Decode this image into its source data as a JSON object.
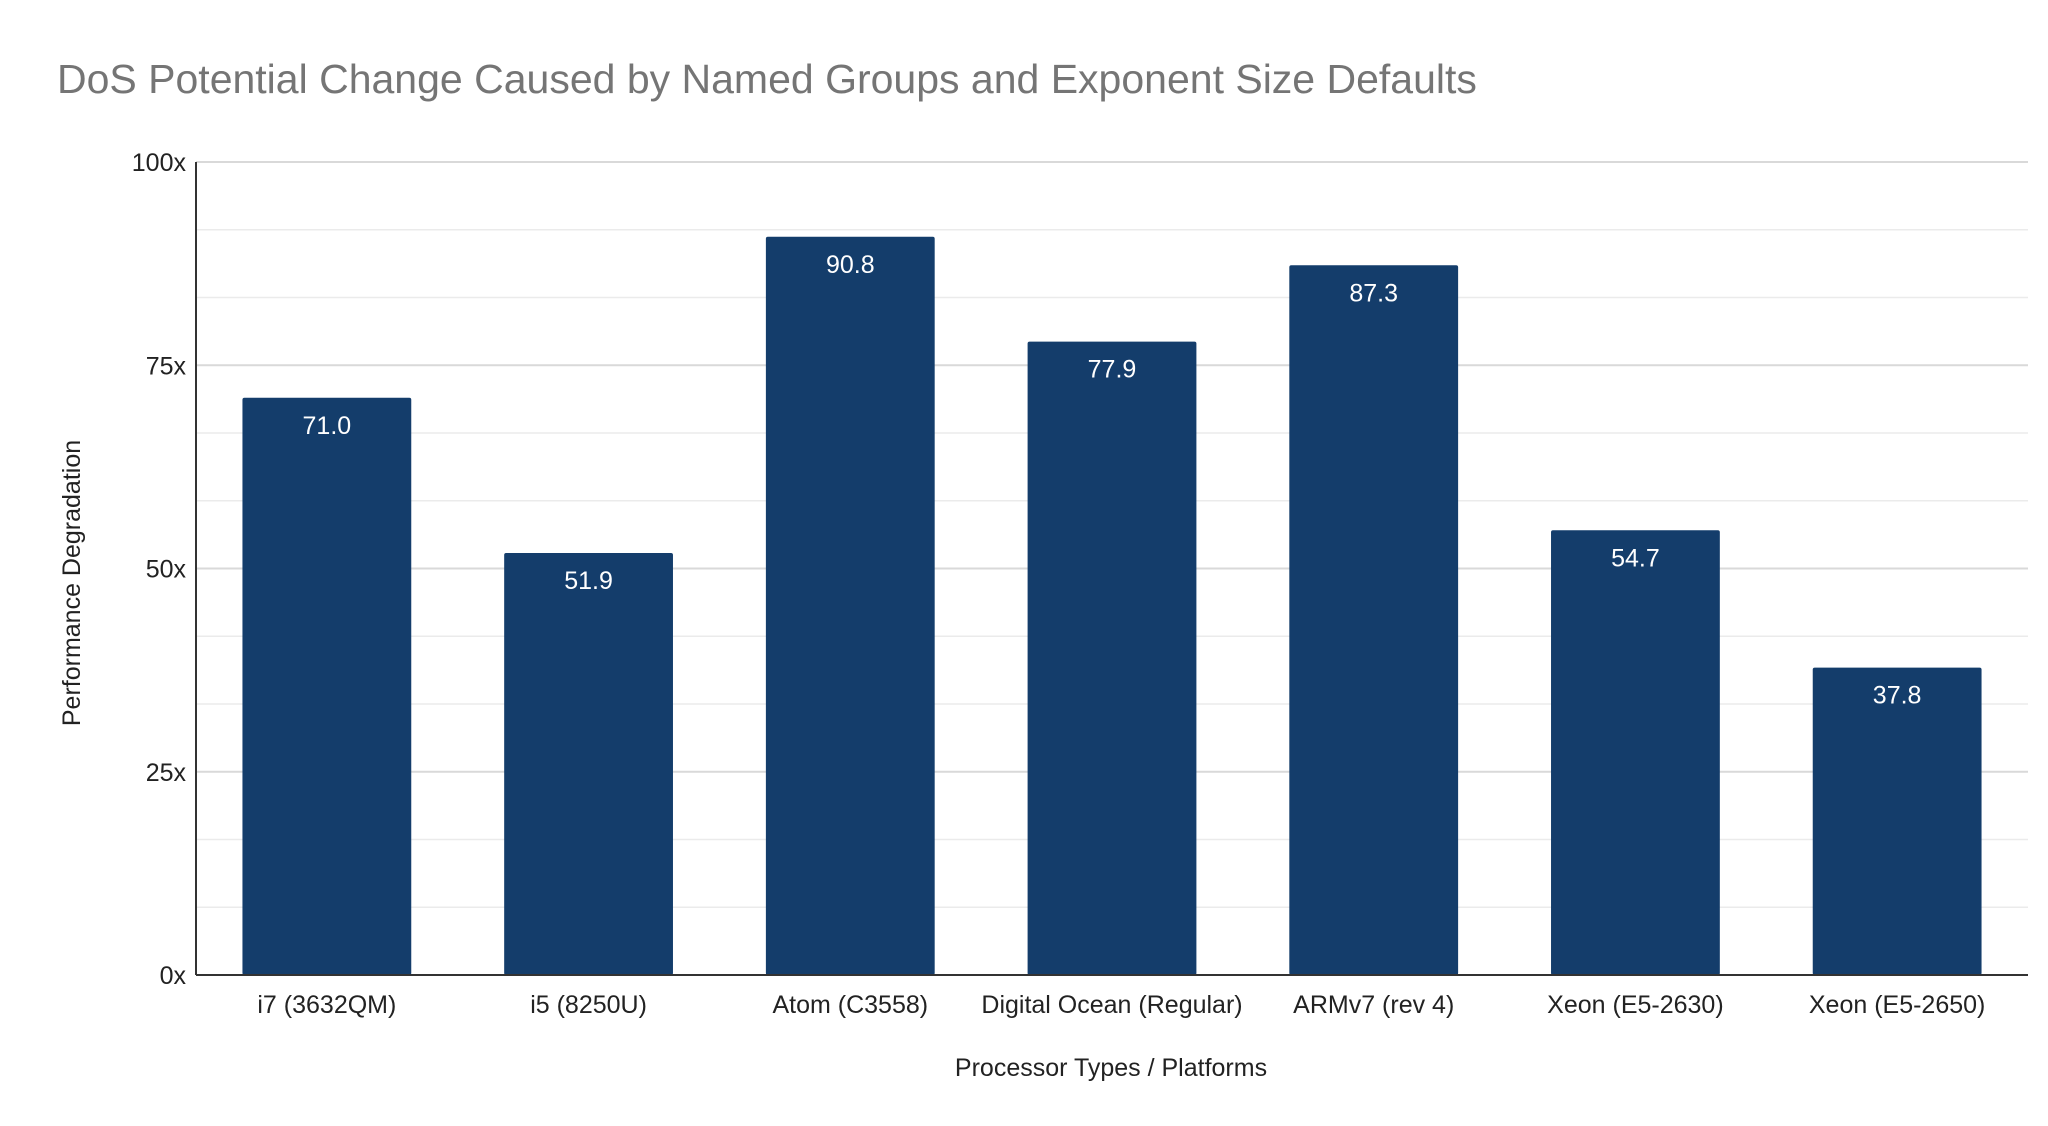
{
  "chart_data": {
    "type": "bar",
    "title": "DoS Potential Change Caused by Named Groups and Exponent Size Defaults",
    "xlabel": "Processor Types / Platforms",
    "ylabel": "Performance Degradation",
    "categories": [
      "i7 (3632QM)",
      "i5 (8250U)",
      "Atom (C3558)",
      "Digital Ocean (Regular)",
      "ARMv7 (rev 4)",
      "Xeon (E5-2630)",
      "Xeon (E5-2650)"
    ],
    "values": [
      71.0,
      51.9,
      90.8,
      77.9,
      87.3,
      54.7,
      37.8
    ],
    "data_labels": [
      "71.0",
      "51.9",
      "90.8",
      "77.9",
      "87.3",
      "54.7",
      "37.8"
    ],
    "ylim": [
      0,
      100
    ],
    "yticks": [
      0,
      25,
      50,
      75,
      100
    ],
    "ytick_labels": [
      "0x",
      "25x",
      "50x",
      "75x",
      "100x"
    ],
    "minor_grid_step": 8.333,
    "grid": true,
    "legend": "none",
    "colors": {
      "bar": "#143d6b",
      "grid": "#d9d9d9",
      "axis": "#333333",
      "title": "#757575"
    }
  }
}
